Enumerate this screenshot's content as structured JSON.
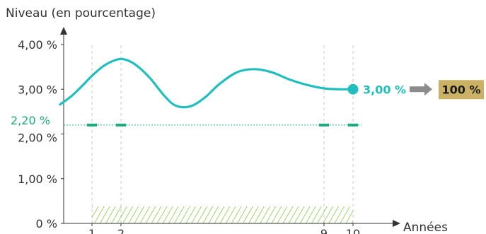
{
  "chart_data": {
    "type": "line",
    "ylabel": "Niveau (en pourcentage)",
    "xlabel": "Années",
    "ylim": [
      0,
      4
    ],
    "y_ticks": [
      {
        "value": 0,
        "label": "0 %"
      },
      {
        "value": 1,
        "label": "1,00 %"
      },
      {
        "value": 2,
        "label": "2,00 %"
      },
      {
        "value": 3,
        "label": "3,00 %"
      },
      {
        "value": 4,
        "label": "4,00 %"
      }
    ],
    "x_ticks": [
      {
        "value": 1,
        "label": "1"
      },
      {
        "value": 2,
        "label": "2"
      },
      {
        "value": 9,
        "label": "9"
      },
      {
        "value": 10,
        "label": "10"
      }
    ],
    "xlim": [
      0,
      11.5
    ],
    "grid": false,
    "series": [
      {
        "points": [
          [
            -0.1,
            2.66
          ],
          [
            0.3,
            2.85
          ],
          [
            0.7,
            3.1
          ],
          [
            1.0,
            3.3
          ],
          [
            1.4,
            3.52
          ],
          [
            1.8,
            3.65
          ],
          [
            2.1,
            3.67
          ],
          [
            2.5,
            3.55
          ],
          [
            3.0,
            3.25
          ],
          [
            3.5,
            2.85
          ],
          [
            3.9,
            2.63
          ],
          [
            4.4,
            2.62
          ],
          [
            4.9,
            2.82
          ],
          [
            5.4,
            3.12
          ],
          [
            6.0,
            3.38
          ],
          [
            6.6,
            3.45
          ],
          [
            7.2,
            3.38
          ],
          [
            7.8,
            3.22
          ],
          [
            8.4,
            3.1
          ],
          [
            9.0,
            3.02
          ],
          [
            9.5,
            3.0
          ],
          [
            10.0,
            3.0
          ]
        ],
        "color": "#20bfbe"
      }
    ],
    "reference_line": {
      "value": 2.2,
      "label": "2,20 %",
      "color": "#1bab7f",
      "dash_at_x": [
        1,
        2,
        9,
        10
      ]
    },
    "end_point": {
      "x": 10,
      "y": 3.0,
      "label": "3,00 %"
    },
    "result_box": {
      "label": "100 %",
      "color": "#cbb163"
    },
    "hatched_range": {
      "x_from": 1,
      "x_to": 10,
      "y_to": 0.38,
      "color": "#8fc640"
    },
    "vertical_guides_at_x": [
      1,
      2,
      9,
      10
    ]
  }
}
